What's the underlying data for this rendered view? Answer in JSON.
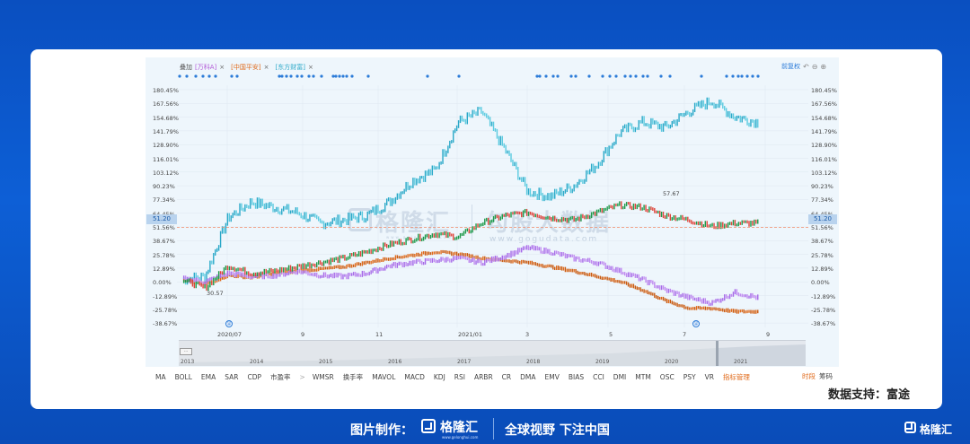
{
  "legend": {
    "prefix": "叠加",
    "series": [
      {
        "label": "[万科A]",
        "color": "#b45ad8"
      },
      {
        "label": "[中国平安]",
        "color": "#e06a1a"
      },
      {
        "label": "[东方财富]",
        "color": "#2aa8c8"
      }
    ],
    "close_glyph": "×"
  },
  "toolbar": {
    "right_label": "前复权"
  },
  "y_axis": {
    "ticks": [
      "180.45%",
      "167.56%",
      "154.68%",
      "141.79%",
      "128.90%",
      "116.01%",
      "103.12%",
      "90.23%",
      "77.34%",
      "64.45%",
      "51.56%",
      "38.67%",
      "25.78%",
      "12.89%",
      "0.00%",
      "-12.89%",
      "-25.78%",
      "-38.67%"
    ]
  },
  "current_tag": "51.20",
  "x_axis": {
    "labels": [
      "2020/07",
      "9",
      "11",
      "2021/01",
      "3",
      "5",
      "7",
      "9"
    ]
  },
  "annotations": {
    "high": "57.67",
    "low": "30.57"
  },
  "watermarks": {
    "left": "格隆汇",
    "right": "勾股大数据",
    "right_sub": "www.gogudata.com",
    "left_sub": "www.gelonghui.com"
  },
  "navigator": {
    "years": [
      "2013",
      "2014",
      "2015",
      "2016",
      "2017",
      "2018",
      "2019",
      "2020",
      "2021"
    ]
  },
  "indicators": {
    "items": [
      "MA",
      "BOLL",
      "EMA",
      "SAR",
      "CDP",
      "市盈率"
    ],
    "more": ">",
    "items2": [
      "WMSR",
      "换手率",
      "MAVOL",
      "MACD",
      "KDJ",
      "RSI",
      "ARBR",
      "CR",
      "DMA",
      "EMV",
      "BIAS",
      "CCI",
      "DMI",
      "MTM",
      "OSC",
      "PSY",
      "VR"
    ],
    "manage": "指标管理",
    "right_orange": "时段",
    "right_gray": "筹码"
  },
  "support_text": "数据支持：富途",
  "footer": {
    "made_by": "图片制作：",
    "brand": "格隆汇",
    "brand_sub": "www.gelonghui.com",
    "slogan": "全球视野 下注中国",
    "corner_brand": "格隆汇"
  },
  "colors": {
    "cyan": "#2aa8c8",
    "green": "#1e9a4a",
    "red": "#e0443a",
    "purple": "#a66ae8",
    "orange": "#e06a1a",
    "dash": "#f08a6a"
  },
  "chart_data": {
    "type": "line",
    "ylim": [
      -38.67,
      180.45
    ],
    "current_value": 51.2,
    "x": [
      "2020/07",
      "9",
      "11",
      "2021/01",
      "3",
      "5",
      "7",
      "9"
    ],
    "series": [
      {
        "name": "东方财富",
        "values": [
          62,
          70,
          52,
          155,
          80,
          140,
          165,
          150
        ]
      },
      {
        "name": "万科A",
        "values": [
          5,
          14,
          25,
          30,
          22,
          5,
          -12,
          -15
        ]
      },
      {
        "name": "中国平安",
        "values": [
          10,
          15,
          22,
          25,
          18,
          0,
          -22,
          -28
        ]
      }
    ]
  }
}
